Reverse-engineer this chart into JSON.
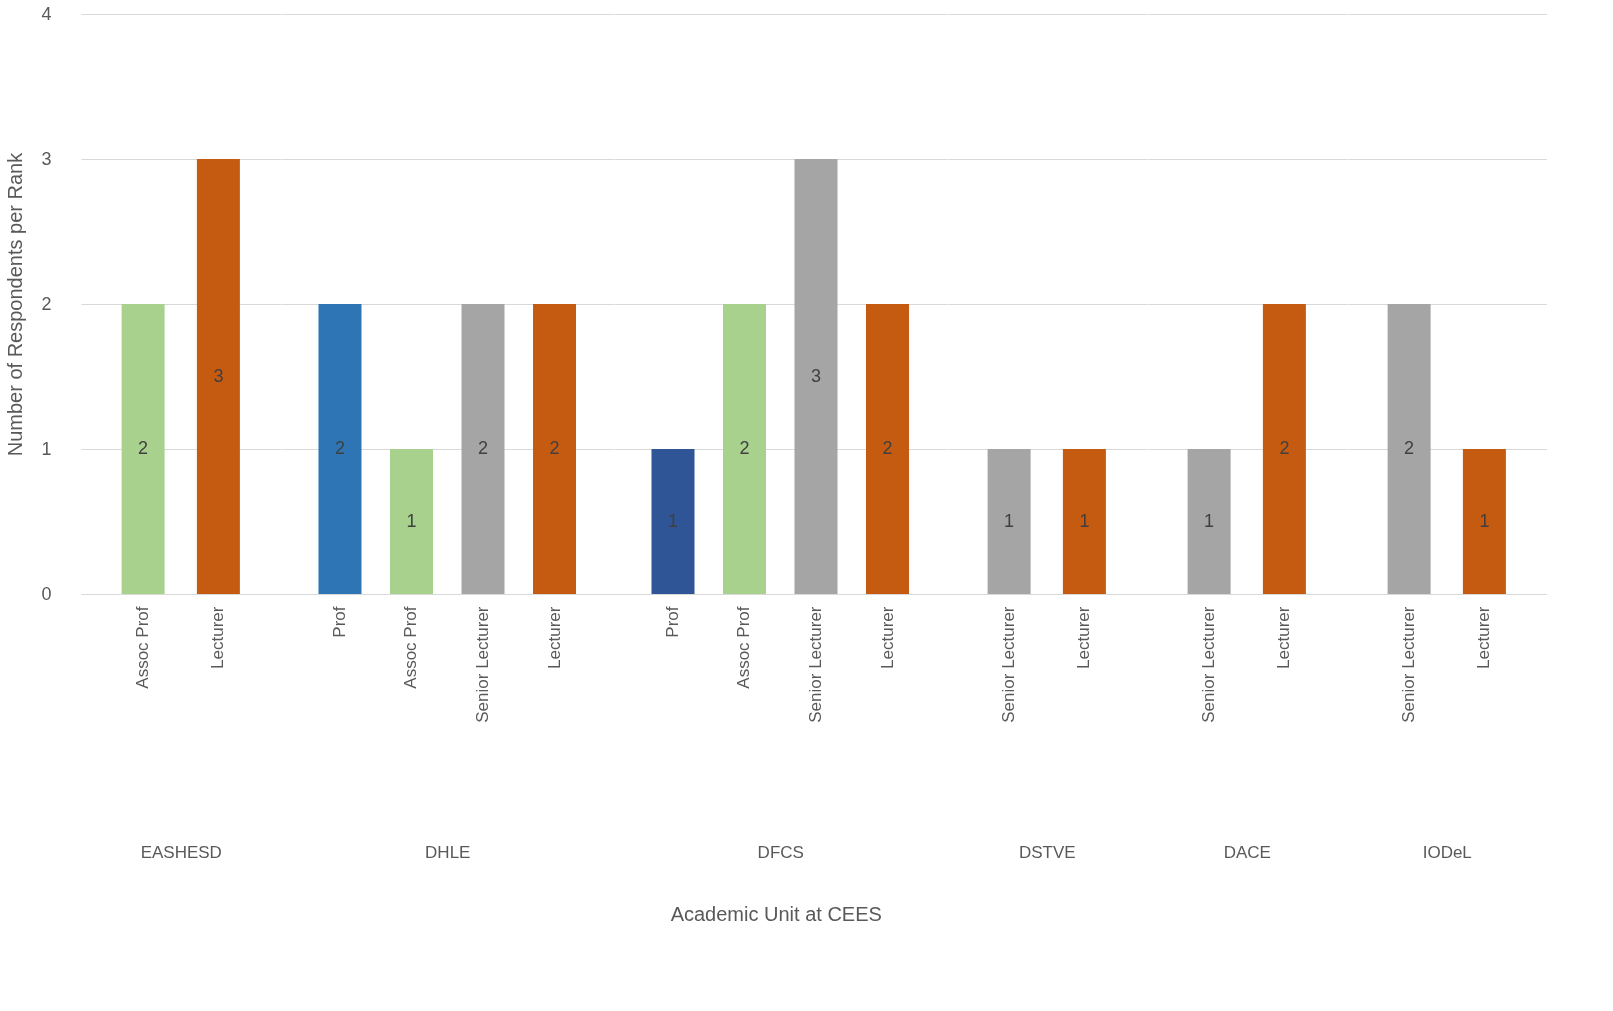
{
  "chart_data": [
    {
      "type": "bar",
      "xlabel": "EASHESD",
      "ylabel": "Number of Respondents per Rank",
      "annotations": [
        "Academic Unit at CEES"
      ],
      "categories": [
        "Assoc Prof",
        "Lecturer"
      ],
      "values": [
        2,
        3
      ],
      "colors": [
        "#a9d18e",
        "#c55a11"
      ],
      "ylim": [
        0,
        4
      ],
      "yticks": [
        0,
        1,
        2,
        3,
        4
      ],
      "grid": "y",
      "data_labels": true
    },
    {
      "type": "bar",
      "xlabel": "DHLE",
      "categories": [
        "Prof",
        "Assoc Prof",
        "Senior Lecturer",
        "Lecturer"
      ],
      "values": [
        2,
        1,
        2,
        2
      ],
      "colors": [
        "#2e75b6",
        "#a9d18e",
        "#a5a5a5",
        "#c55a11"
      ],
      "ylim": [
        0,
        4
      ],
      "yticks": [
        0,
        1,
        2,
        3,
        4
      ],
      "grid": "y",
      "data_labels": true,
      "tick_labels": "x"
    },
    {
      "type": "bar",
      "xlabel": "DFCS",
      "categories": [
        "Prof",
        "Assoc Prof",
        "Senior Lecturer",
        "Lecturer"
      ],
      "values": [
        1,
        2,
        3,
        2
      ],
      "colors": [
        "#2f5597",
        "#a9d18e",
        "#a5a5a5",
        "#c55a11"
      ],
      "ylim": [
        0,
        4
      ],
      "yticks": [
        0,
        1,
        2,
        3,
        4
      ],
      "grid": "y",
      "data_labels": true,
      "tick_labels": "x"
    },
    {
      "type": "bar",
      "xlabel": "DSTVE",
      "categories": [
        "Senior Lecturer",
        "Lecturer"
      ],
      "values": [
        1,
        1
      ],
      "colors": [
        "#a5a5a5",
        "#c55a11"
      ],
      "ylim": [
        0,
        4
      ],
      "yticks": [
        0,
        1,
        2,
        3,
        4
      ],
      "grid": "y",
      "data_labels": true,
      "tick_labels": "x"
    },
    {
      "type": "bar",
      "xlabel": "DACE",
      "categories": [
        "Senior Lecturer",
        "Lecturer"
      ],
      "values": [
        1,
        2
      ],
      "colors": [
        "#a5a5a5",
        "#c55a11"
      ],
      "ylim": [
        0,
        4
      ],
      "yticks": [
        0,
        1,
        2,
        3,
        4
      ],
      "grid": "y",
      "data_labels": true,
      "tick_labels": "x"
    },
    {
      "type": "bar",
      "xlabel": "IODeL",
      "categories": [
        "Senior Lecturer",
        "Lecturer"
      ],
      "values": [
        2,
        1
      ],
      "colors": [
        "#a5a5a5",
        "#c55a11"
      ],
      "ylim": [
        0,
        4
      ],
      "yticks": [
        0,
        1,
        2,
        3,
        4
      ],
      "grid": "y",
      "data_labels": true,
      "tick_labels": "x"
    }
  ]
}
